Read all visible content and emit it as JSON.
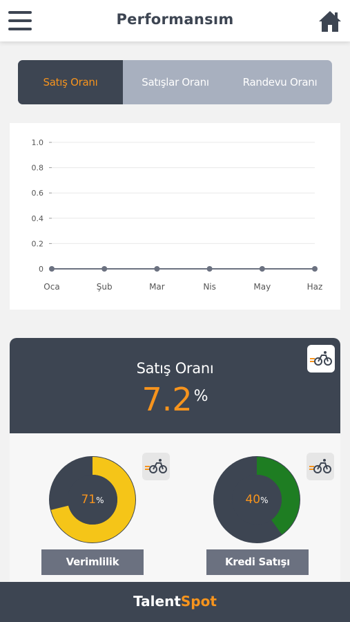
{
  "header": {
    "title": "Performansım"
  },
  "tabs": [
    {
      "label": "Satış Oranı",
      "active": true
    },
    {
      "label": "Satışlar Oranı",
      "active": false
    },
    {
      "label": "Randevu Oranı",
      "active": false
    }
  ],
  "chart_data": {
    "type": "line",
    "categories": [
      "Oca",
      "Şub",
      "Mar",
      "Nis",
      "May",
      "Haz"
    ],
    "series": [
      {
        "values": [
          0,
          0,
          0,
          0,
          0,
          0
        ]
      }
    ],
    "yticks": [
      "1.0",
      "0.8",
      "0.6",
      "0.4",
      "0.2",
      "0"
    ],
    "ylim": [
      0,
      1
    ],
    "grid": true,
    "line_color": "#6b7180"
  },
  "stat": {
    "label": "Satış Oranı",
    "value": "7.2",
    "unit": "%"
  },
  "gauges": [
    {
      "value": "71",
      "unit": "%",
      "fraction": 0.71,
      "label": "Verimlilik",
      "color": "#f5c518"
    },
    {
      "value": "40",
      "unit": "%",
      "fraction": 0.4,
      "label": "Kredi Satışı",
      "color": "#1e7d22"
    }
  ],
  "footer": {
    "brand_left": "Talent",
    "brand_right": "Spot"
  },
  "colors": {
    "dark": "#3d4552",
    "accent": "#f7941d",
    "tab_bg": "#a8b0bf"
  },
  "icons": {
    "menu": "hamburger-icon",
    "home": "home-icon",
    "bike": "bicycle-icon"
  }
}
